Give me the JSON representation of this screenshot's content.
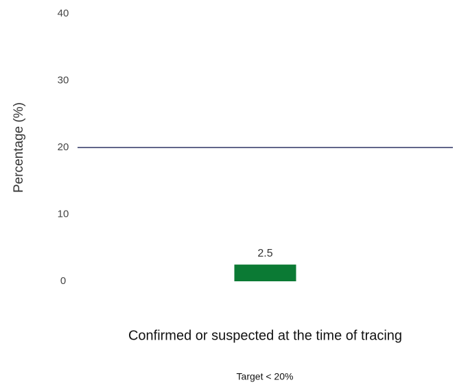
{
  "chart_data": {
    "type": "bar",
    "categories": [
      "Confirmed or suspected at the time of tracing"
    ],
    "values": [
      2.5
    ],
    "color": "#0b7a34",
    "ylabel": "Percentage (%)",
    "ylim": [
      0,
      40
    ],
    "yticks": [
      0,
      10,
      20,
      30,
      40
    ],
    "target": 20,
    "target_color": "#2b3262",
    "note": "Target < 20%"
  }
}
